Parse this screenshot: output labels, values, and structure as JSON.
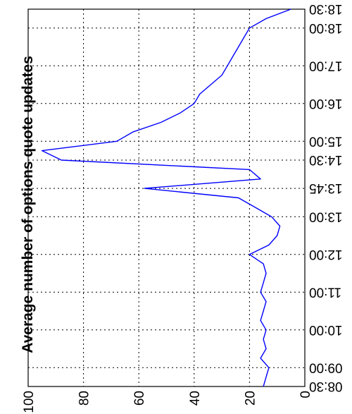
{
  "chart_data": {
    "type": "line",
    "orientation": "rotated-90",
    "title": "",
    "ylabel": "Average number of options quote updates",
    "xlabel": "",
    "ylim": [
      0,
      100
    ],
    "y_ticks": [
      "0",
      "20",
      "40",
      "60",
      "80",
      "100"
    ],
    "x_ticks": [
      "08:30",
      "09:00",
      "10:00",
      "11:00",
      "12:00",
      "13:00",
      "13:45",
      "14:30",
      "15:00",
      "16:00",
      "17:00",
      "18:00",
      "18:30"
    ],
    "grid": true,
    "series": [
      {
        "color": "#0000ff",
        "x": [
          "08:30",
          "08:45",
          "09:00",
          "09:15",
          "09:30",
          "09:45",
          "10:00",
          "10:15",
          "10:30",
          "10:45",
          "11:00",
          "11:15",
          "11:30",
          "11:45",
          "12:00",
          "12:15",
          "12:30",
          "12:45",
          "13:00",
          "13:15",
          "13:30",
          "13:45",
          "14:00",
          "14:15",
          "14:30",
          "14:45",
          "15:00",
          "15:15",
          "15:30",
          "15:45",
          "16:00",
          "16:15",
          "16:30",
          "16:45",
          "17:00",
          "17:15",
          "17:30",
          "17:45",
          "18:00",
          "18:15",
          "18:30"
        ],
        "values": [
          15,
          14,
          13,
          16,
          14,
          15,
          14,
          16,
          15,
          14,
          16,
          15,
          14,
          15,
          20,
          13,
          10,
          9,
          12,
          18,
          24,
          58,
          16,
          20,
          88,
          95,
          68,
          62,
          52,
          45,
          40,
          38,
          34,
          30,
          28,
          26,
          24,
          22,
          20,
          14,
          5
        ]
      }
    ]
  }
}
